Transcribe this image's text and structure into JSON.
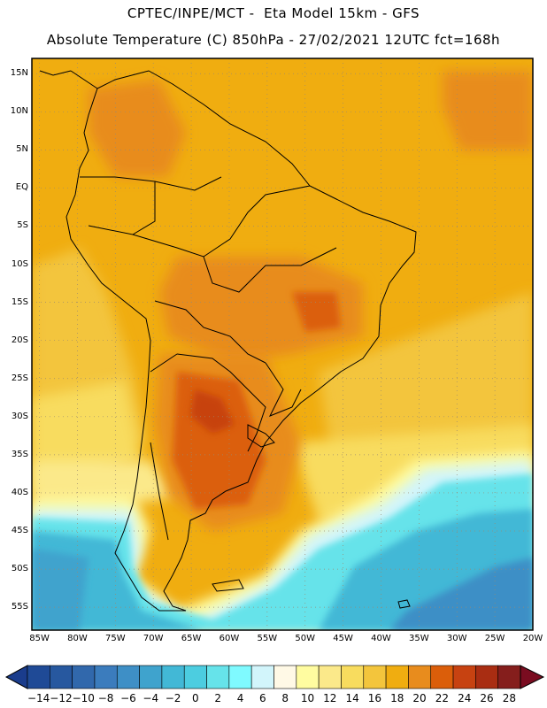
{
  "header": {
    "line1": "CPTEC/INPE/MCT -  Eta Model 15km - GFS",
    "line2": "Absolute Temperature (C) 850hPa - 27/02/2021 12UTC fct=168h"
  },
  "map": {
    "variable": "Absolute Temperature",
    "units": "C",
    "level": "850hPa",
    "lat_range": [
      -58,
      17
    ],
    "lon_range": [
      -86,
      -20
    ],
    "lat_labels": [
      "15N",
      "10N",
      "5N",
      "EQ",
      "5S",
      "10S",
      "15S",
      "20S",
      "25S",
      "30S",
      "35S",
      "40S",
      "45S",
      "50S",
      "55S"
    ],
    "lon_labels": [
      "85W",
      "80W",
      "75W",
      "70W",
      "65W",
      "60W",
      "55W",
      "50W",
      "45W",
      "40W",
      "35W",
      "30W",
      "25W",
      "20W"
    ]
  },
  "colorbar": {
    "labels": [
      "-14",
      "-12",
      "-10",
      "-8",
      "-6",
      "-4",
      "-2",
      "0",
      "2",
      "4",
      "6",
      "8",
      "10",
      "12",
      "14",
      "16",
      "18",
      "20",
      "22",
      "24",
      "26",
      "28"
    ],
    "colors": [
      "#1f4a96",
      "#27589f",
      "#3168ac",
      "#3b7cbd",
      "#3e8fc6",
      "#3fa3cd",
      "#42b8d6",
      "#4ccde0",
      "#66e3ea",
      "#7ffaff",
      "#d2f5fb",
      "#fff9e6",
      "#fffca0",
      "#fbe98a",
      "#f8dc5e",
      "#f3c53c",
      "#f0ad10",
      "#e88c1d",
      "#db5e0a",
      "#c74211",
      "#a92d12",
      "#851e1c"
    ],
    "under_color": "#1a3c8c",
    "over_color": "#7a0c20"
  }
}
